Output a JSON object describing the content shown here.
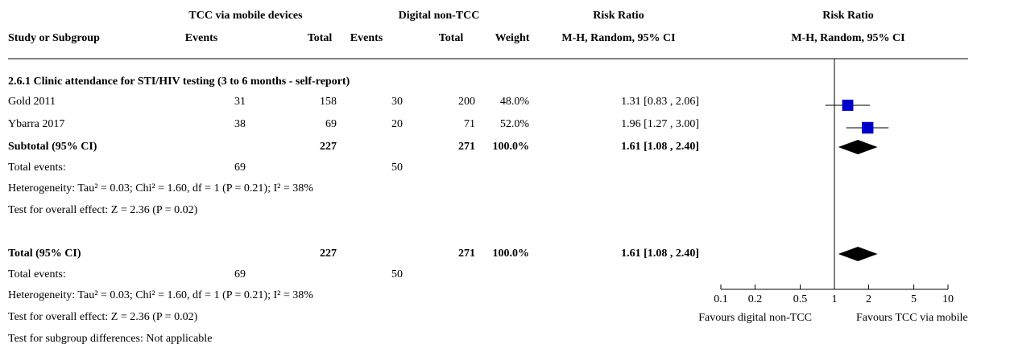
{
  "chart_data": {
    "type": "forest",
    "column_groups": [
      "TCC via mobile devices",
      "Digital non-TCC",
      "Risk Ratio",
      "Risk Ratio"
    ],
    "columns": [
      "Study or Subgroup",
      "Events",
      "Total",
      "Events",
      "Total",
      "Weight",
      "M-H, Random, 95% CI",
      "M-H, Random, 95% CI"
    ],
    "subgroup": {
      "title": "2.6.1 Clinic attendance for STI/HIV testing (3 to 6 months - self-report)",
      "studies": [
        {
          "name": "Gold 2011",
          "cells": [
            "31",
            "158",
            "30",
            "200",
            "48.0%",
            "1.31 [0.83 , 2.06]"
          ],
          "estimate": 1.31,
          "ci": [
            0.83,
            2.06
          ],
          "weight": 48.0
        },
        {
          "name": "Ybarra 2017",
          "cells": [
            "38",
            "69",
            "20",
            "71",
            "52.0%",
            "1.96 [1.27 , 3.00]"
          ],
          "estimate": 1.96,
          "ci": [
            1.27,
            3.0
          ],
          "weight": 52.0
        }
      ],
      "subtotal": {
        "label": "Subtotal (95% CI)",
        "total_tcc": "227",
        "total_digital": "271",
        "weight": "100.0%",
        "ci_text": "1.61 [1.08 , 2.40]",
        "estimate": 1.61,
        "ci": [
          1.08,
          2.4
        ]
      },
      "events": {
        "label": "Total events:",
        "tcc": "69",
        "digital": "50"
      },
      "heterogeneity": "Heterogeneity: Tau² = 0.03; Chi² = 1.60, df = 1 (P = 0.21); I² = 38%",
      "overall_effect": "Test for overall effect: Z = 2.36 (P = 0.02)"
    },
    "total": {
      "summary": {
        "label": "Total (95% CI)",
        "total_tcc": "227",
        "total_digital": "271",
        "weight": "100.0%",
        "ci_text": "1.61 [1.08 , 2.40]",
        "estimate": 1.61,
        "ci": [
          1.08,
          2.4
        ]
      },
      "events": {
        "label": "Total events:",
        "tcc": "69",
        "digital": "50"
      },
      "heterogeneity": "Heterogeneity: Tau² = 0.03; Chi² = 1.60, df = 1 (P = 0.21); I² = 38%",
      "overall_effect": "Test for overall effect: Z = 2.36 (P = 0.02)"
    },
    "subgroup_differences": "Test for subgroup differences: Not applicable",
    "log_scale": true,
    "xlim": [
      0.1,
      10
    ],
    "xticks": [
      0.1,
      0.2,
      0.5,
      1,
      2,
      5,
      10
    ],
    "favours_left": "Favours digital non-TCC",
    "favours_right": "Favours TCC via mobile",
    "marker_color": "#0000cc"
  }
}
